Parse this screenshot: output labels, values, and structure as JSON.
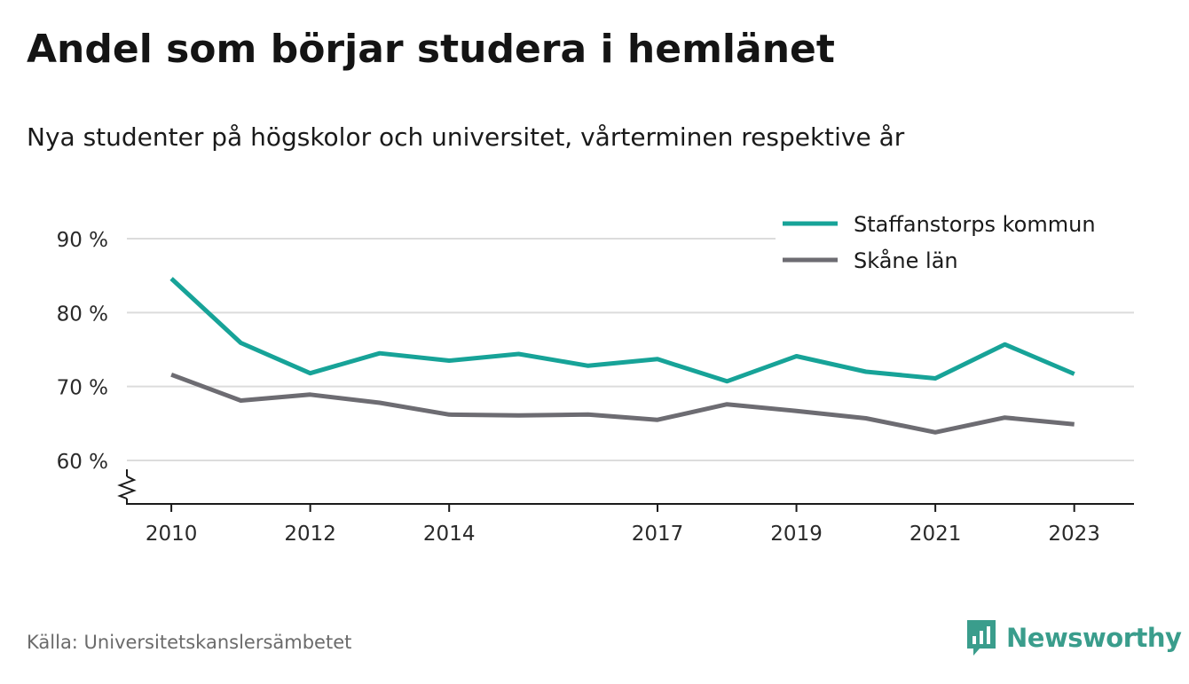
{
  "header": {
    "title": "Andel som börjar studera i hemlänet",
    "subtitle": "Nya studenter på högskolor och universitet, vårterminen respektive år"
  },
  "footer": {
    "source": "Källa: Universitetskanslersämbetet",
    "brand": "Newsworthy",
    "brand_icon": "bar-chart-speech-bubble-icon"
  },
  "colors": {
    "staffanstorp": "#17a398",
    "skane": "#6d6c72",
    "grid": "#dcdcdc",
    "brand": "#3a9d8c"
  },
  "chart_data": {
    "type": "line",
    "title": "Andel som börjar studera i hemlänet",
    "subtitle": "Nya studenter på högskolor och universitet, vårterminen respektive år",
    "x": [
      2010,
      2011,
      2012,
      2013,
      2014,
      2015,
      2016,
      2017,
      2018,
      2019,
      2020,
      2021,
      2022,
      2023
    ],
    "x_tick_labels": [
      "2010",
      "2012",
      "2014",
      "2017",
      "2019",
      "2021",
      "2023"
    ],
    "y_tick_values": [
      60,
      70,
      80,
      90
    ],
    "y_tick_labels": [
      "60 %",
      "70 %",
      "80 %",
      "90 %"
    ],
    "ylim": [
      54,
      92
    ],
    "axis_break": "y-axis broken below 60 %",
    "grid": "horizontal",
    "legend_position": "top-right",
    "series": [
      {
        "name": "Staffanstorps kommun",
        "color": "#17a398",
        "values": [
          84.6,
          75.9,
          71.8,
          74.5,
          73.5,
          74.4,
          72.8,
          73.7,
          70.7,
          74.1,
          72.0,
          71.1,
          75.7,
          71.7
        ]
      },
      {
        "name": "Skåne län",
        "color": "#6d6c72",
        "values": [
          71.6,
          68.1,
          68.9,
          67.8,
          66.2,
          66.1,
          66.2,
          65.5,
          67.6,
          66.7,
          65.7,
          63.8,
          65.8,
          64.9
        ]
      }
    ]
  }
}
